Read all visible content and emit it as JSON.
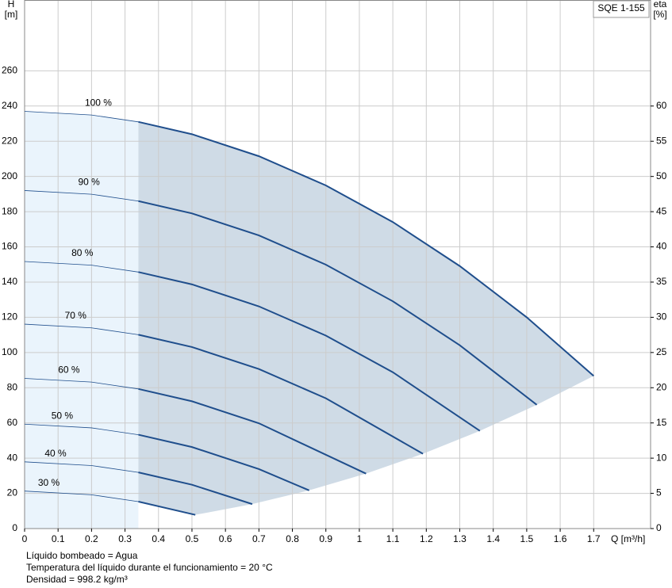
{
  "chart_data": {
    "type": "line",
    "title": "SQE 1-155",
    "y_label": "H",
    "y_unit": "[m]",
    "y2_label": "eta",
    "y2_unit": "[%]",
    "x_label": "Q [m³/h]",
    "xlim": [
      0,
      1.87
    ],
    "xticks": [
      0,
      0.1,
      0.2,
      0.3,
      0.4,
      0.5,
      0.6,
      0.7,
      0.8,
      0.9,
      1,
      1.1,
      1.2,
      1.3,
      1.4,
      1.5,
      1.6,
      1.7
    ],
    "ylim": [
      0,
      300
    ],
    "yticks": [
      0,
      20,
      40,
      60,
      80,
      100,
      120,
      140,
      160,
      180,
      200,
      220,
      240,
      260
    ],
    "y2lim": [
      0,
      75
    ],
    "y2ticks": [
      0,
      5,
      10,
      15,
      20,
      25,
      30,
      35,
      40,
      45,
      50,
      55,
      60
    ],
    "grid": true,
    "shaded_from_x": 0.34,
    "color": "#1f4e8c",
    "series": [
      {
        "name": "100 %",
        "x": [
          0,
          0.2,
          0.34,
          0.5,
          0.7,
          0.9,
          1.1,
          1.3,
          1.5,
          1.7
        ],
        "values": [
          237,
          234.9,
          231.0,
          224.0,
          211.5,
          194.9,
          174.1,
          149.1,
          120.0,
          86.7
        ]
      },
      {
        "name": "90 %",
        "x": [
          0,
          0.2,
          0.34,
          0.5,
          0.7,
          0.9,
          1.1,
          1.3,
          1.53
        ],
        "values": [
          192,
          189.9,
          186.0,
          179.0,
          166.5,
          149.9,
          129.1,
          104.1,
          70.3
        ]
      },
      {
        "name": "80 %",
        "x": [
          0,
          0.2,
          0.34,
          0.5,
          0.7,
          0.9,
          1.1,
          1.36
        ],
        "values": [
          151.7,
          149.6,
          145.7,
          138.7,
          126.2,
          109.6,
          88.8,
          55.5
        ]
      },
      {
        "name": "70 %",
        "x": [
          0,
          0.2,
          0.34,
          0.5,
          0.7,
          0.9,
          1.19
        ],
        "values": [
          116.1,
          114.0,
          110.1,
          103.1,
          90.6,
          74.0,
          42.5
        ]
      },
      {
        "name": "60 %",
        "x": [
          0,
          0.2,
          0.34,
          0.5,
          0.7,
          1.02
        ],
        "values": [
          85.3,
          83.2,
          79.3,
          72.3,
          59.8,
          31.2
        ]
      },
      {
        "name": "50 %",
        "x": [
          0,
          0.2,
          0.34,
          0.5,
          0.7,
          0.85
        ],
        "values": [
          59.3,
          57.2,
          53.3,
          46.3,
          33.8,
          21.7
        ]
      },
      {
        "name": "40 %",
        "x": [
          0,
          0.2,
          0.34,
          0.5,
          0.68
        ],
        "values": [
          37.9,
          35.8,
          31.9,
          24.9,
          13.9
        ]
      },
      {
        "name": "30 %",
        "x": [
          0,
          0.2,
          0.34,
          0.51
        ],
        "values": [
          21.3,
          19.2,
          15.3,
          7.8
        ]
      }
    ],
    "notes": [
      "Líquido bombeado = Agua",
      "Temperatura del líquido durante el funcionamiento = 20 °C",
      "Densidad = 998.2 kg/m³"
    ]
  }
}
